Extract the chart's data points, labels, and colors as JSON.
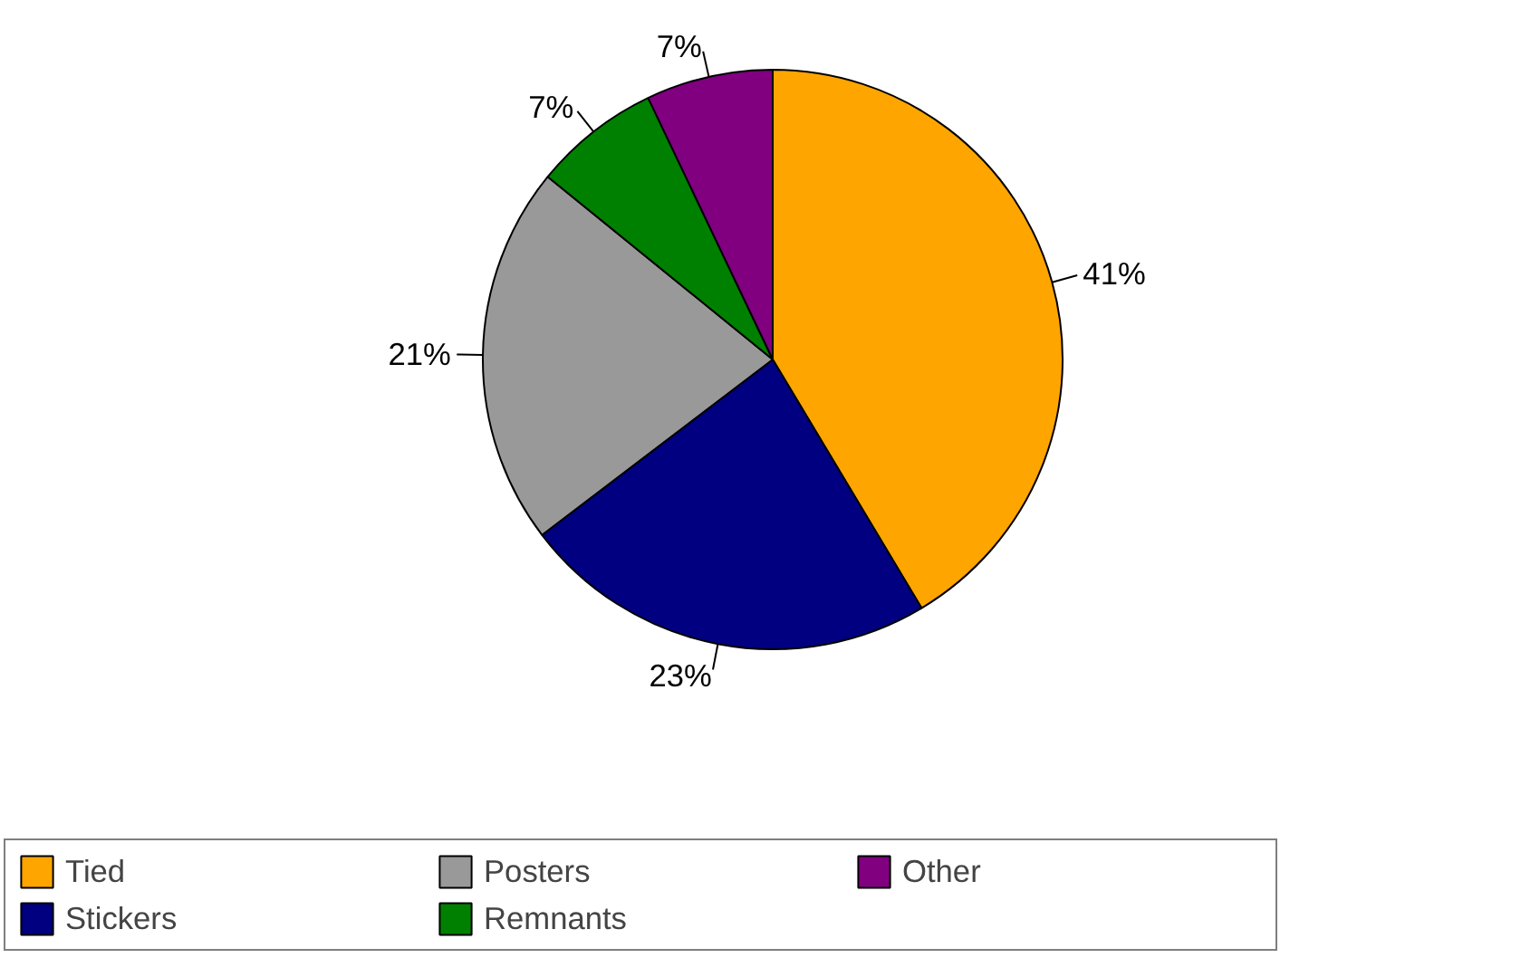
{
  "chart_data": {
    "type": "pie",
    "categories": [
      "Tied",
      "Stickers",
      "Posters",
      "Remnants",
      "Other"
    ],
    "values": [
      41,
      23,
      21,
      7,
      7
    ],
    "colors": [
      "#ffa500",
      "#000080",
      "#999999",
      "#008000",
      "#800080"
    ],
    "value_labels": [
      "41%",
      "23%",
      "21%",
      "7%",
      "7%"
    ],
    "legend": "bottom"
  }
}
